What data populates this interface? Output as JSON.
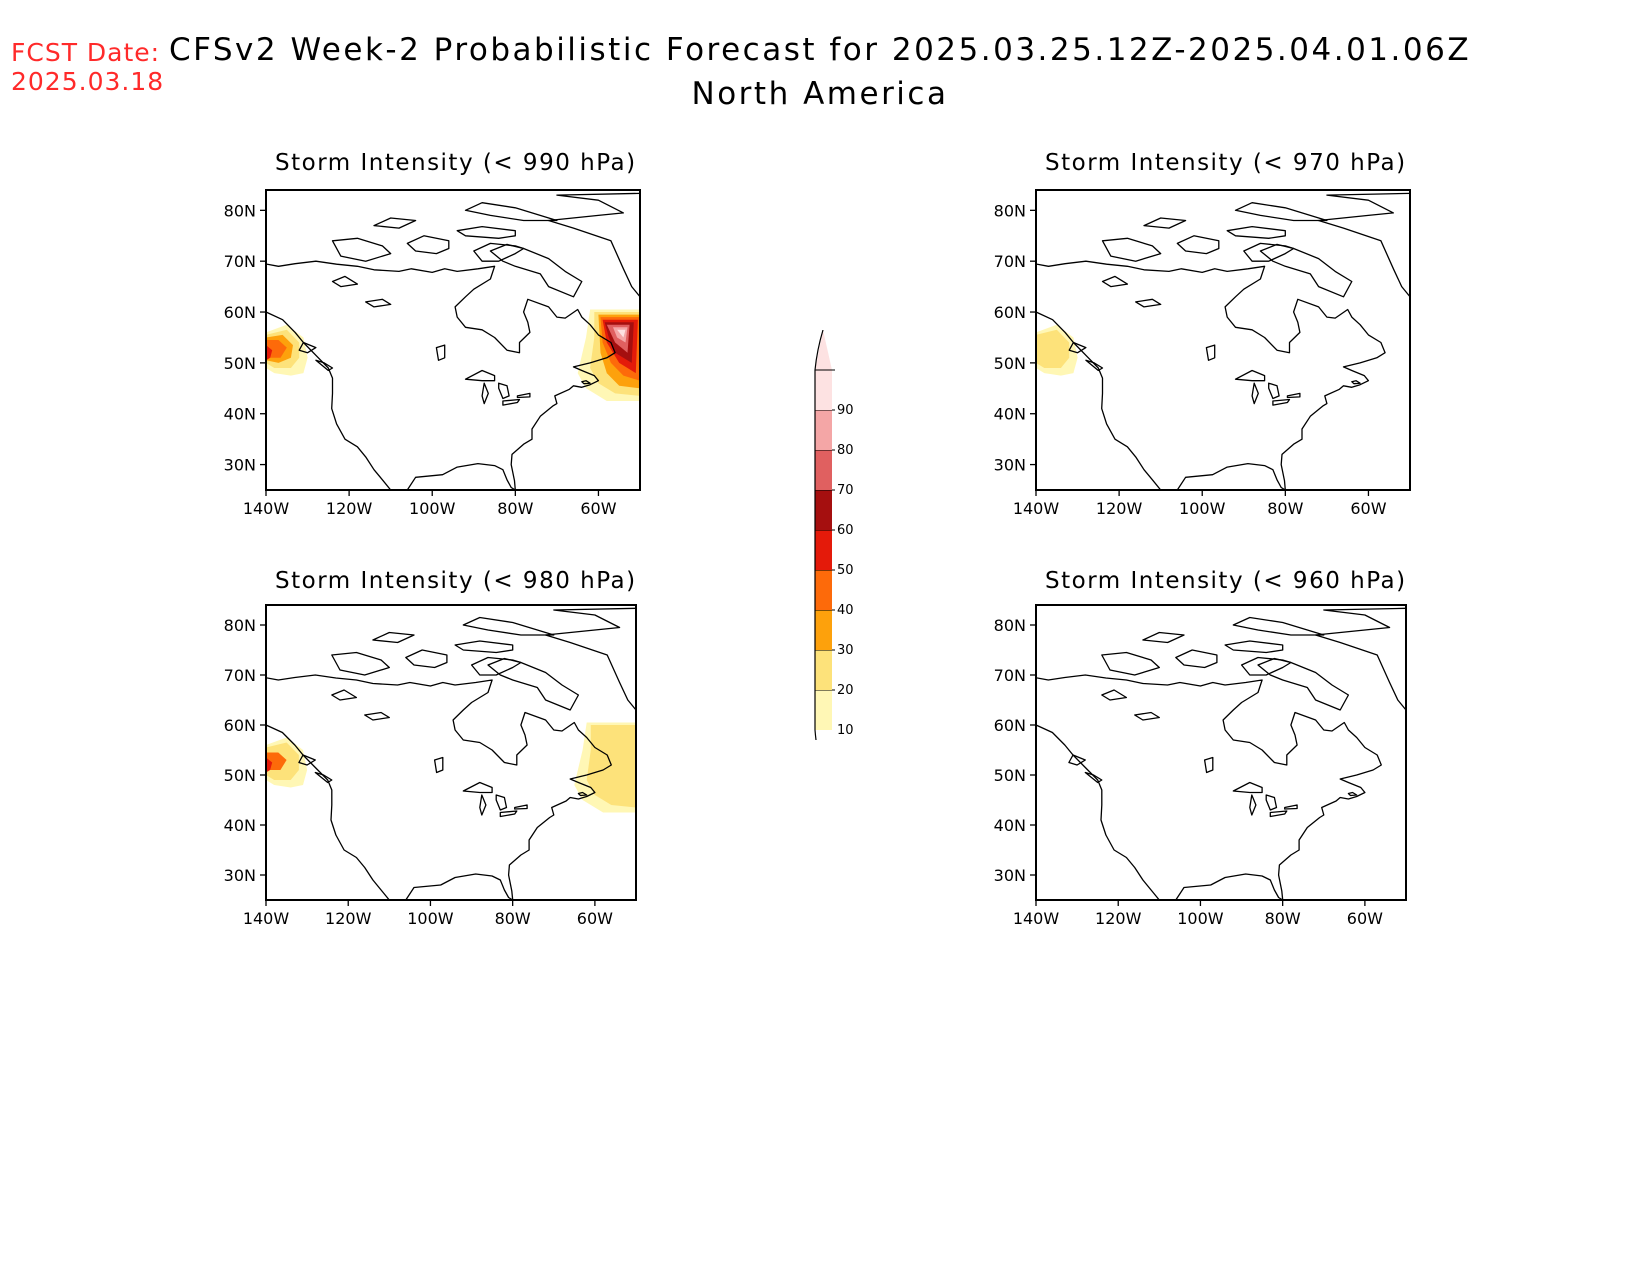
{
  "header": {
    "fcst_label": "FCST Date:",
    "fcst_date": "2025.03.18",
    "title": "CFSv2 Week-2 Probabilistic Forecast for 2025.03.25.12Z-2025.04.01.06Z",
    "subtitle": "North America"
  },
  "axes": {
    "lat_labels": [
      "80N",
      "70N",
      "60N",
      "50N",
      "40N",
      "30N"
    ],
    "lon_labels": [
      "140W",
      "120W",
      "100W",
      "80W",
      "60W"
    ]
  },
  "colorbar": {
    "levels": [
      "10",
      "20",
      "30",
      "40",
      "50",
      "60",
      "70",
      "80",
      "90"
    ],
    "colors": [
      "#fff7b5",
      "#fde27a",
      "#fda10c",
      "#fd6a0a",
      "#e41a0a",
      "#a50f0f",
      "#e06060",
      "#f4a6a6",
      "#fde2e2"
    ]
  },
  "panels": [
    {
      "title": "Storm Intensity (< 990 hPa)",
      "threshold_hpa": 990,
      "probability_regions": [
        {
          "name": "pacific-northwest",
          "levels": [
            10,
            20,
            30,
            40,
            50
          ]
        },
        {
          "name": "atlantic-canada",
          "levels": [
            10,
            20,
            30,
            40,
            50,
            60,
            70,
            80,
            90
          ]
        }
      ]
    },
    {
      "title": "Storm Intensity (< 970 hPa)",
      "threshold_hpa": 970,
      "probability_regions": [
        {
          "name": "pacific-northwest",
          "levels": [
            10,
            20
          ]
        }
      ]
    },
    {
      "title": "Storm Intensity (< 980 hPa)",
      "threshold_hpa": 980,
      "probability_regions": [
        {
          "name": "pacific-northwest",
          "levels": [
            10,
            20,
            40,
            50
          ]
        },
        {
          "name": "atlantic-canada",
          "levels": [
            10,
            20
          ]
        }
      ]
    },
    {
      "title": "Storm Intensity (< 960 hPa)",
      "threshold_hpa": 960,
      "probability_regions": []
    }
  ]
}
